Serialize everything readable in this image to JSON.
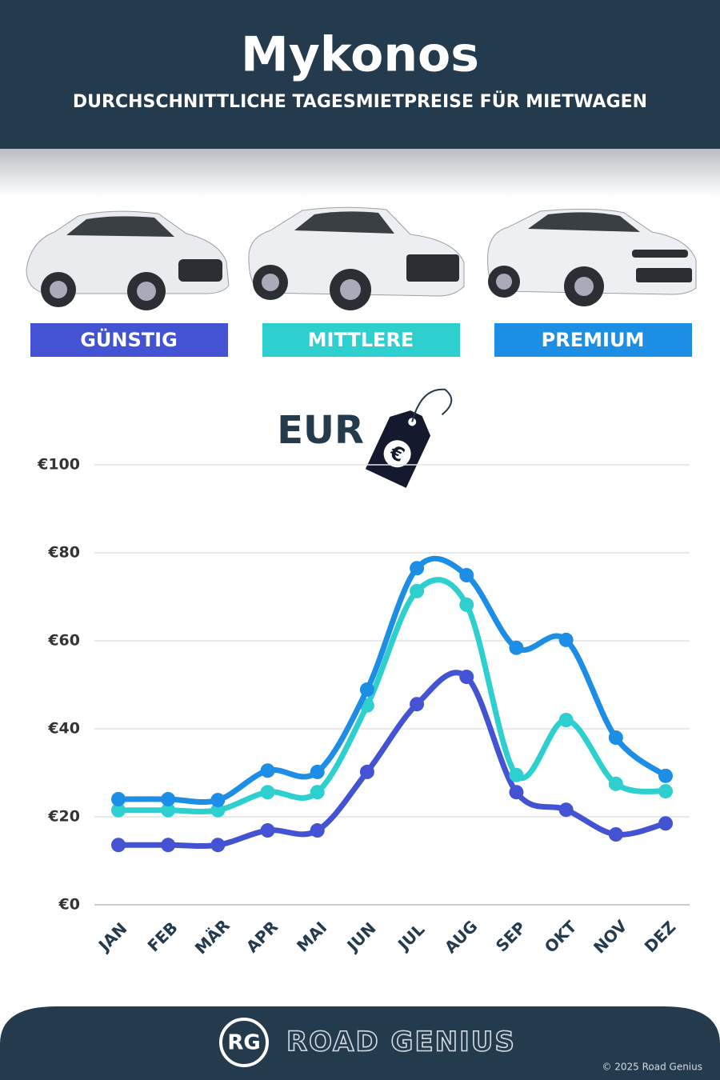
{
  "header": {
    "title": "Mykonos",
    "subtitle": "DURCHSCHNITTLICHE TAGESMIETPREISE FÜR MIETWAGEN"
  },
  "chart_data": {
    "type": "line",
    "currency": "EUR",
    "currency_symbol": "€",
    "categories": [
      "JAN",
      "FEB",
      "MÄR",
      "APR",
      "MAI",
      "JUN",
      "JUL",
      "AUG",
      "SEP",
      "OKT",
      "NOV",
      "DEZ"
    ],
    "series": [
      {
        "name": "GÜNSTIG",
        "color": "#4453d4",
        "values": [
          13.6,
          13.6,
          13.6,
          16.9,
          16.9,
          30.2,
          45.6,
          51.8,
          25.6,
          21.6,
          16.0,
          18.5
        ]
      },
      {
        "name": "MITTLERE",
        "color": "#2ecfcf",
        "values": [
          21.5,
          21.5,
          21.5,
          25.6,
          25.6,
          45.3,
          71.3,
          68.2,
          29.5,
          42.0,
          27.5,
          25.8
        ]
      },
      {
        "name": "PREMIUM",
        "color": "#1c8ee6",
        "values": [
          24.0,
          24.0,
          23.8,
          30.5,
          30.2,
          48.9,
          76.5,
          74.9,
          58.4,
          60.2,
          38.0,
          29.3
        ]
      }
    ],
    "ylim": [
      0,
      100
    ],
    "yticks": [
      {
        "value": 0,
        "label": "€0"
      },
      {
        "value": 20,
        "label": "€20"
      },
      {
        "value": 40,
        "label": "€40"
      },
      {
        "value": 60,
        "label": "€60"
      },
      {
        "value": 80,
        "label": "€80"
      },
      {
        "value": 100,
        "label": "€100"
      }
    ],
    "grid": true
  },
  "footer": {
    "logo": "RG",
    "brand": "ROAD GENIUS",
    "copyright": "© 2025 Road Genius"
  }
}
